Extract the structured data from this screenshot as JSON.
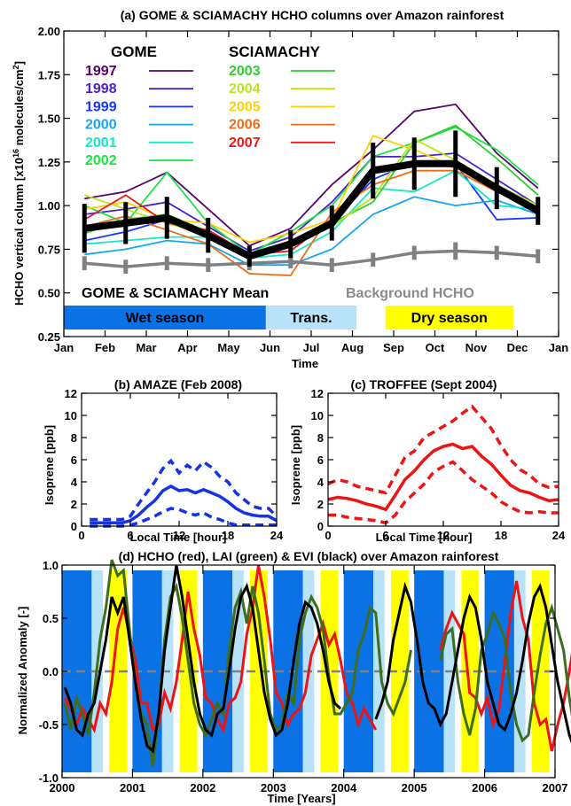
{
  "figure": {
    "title": "GOME & SCIAMACHY HCHO columns over Amazon rainforest",
    "bg": "#ffffff"
  },
  "chart_data": [
    {
      "id": "a",
      "type": "line",
      "title": "(a) GOME & SCIAMACHY HCHO columns over Amazon rainforest",
      "ylabel": "HCHO vertical column [x10",
      "ylabel_sup": "16",
      "ylabel_tail": " molecules/cm",
      "ylabel_sup2": "2",
      "ylabel_end": "]",
      "xlabel": "Time",
      "ylim": [
        0.25,
        2.0
      ],
      "yticks": [
        "0.25",
        "0.50",
        "0.75",
        "1.00",
        "1.25",
        "1.50",
        "1.75",
        "2.00"
      ],
      "xlim": [
        0,
        12
      ],
      "xticks": [
        "Jan",
        "Feb",
        "Mar",
        "Apr",
        "May",
        "Jun",
        "Jul",
        "Aug",
        "Sep",
        "Oct",
        "Nov",
        "Dec",
        "Jan"
      ],
      "x": [
        0.5,
        1.5,
        2.5,
        3.5,
        4.5,
        5.5,
        6.5,
        7.5,
        8.5,
        9.5,
        10.5,
        11.5
      ],
      "legend_headers": {
        "gome": "GOME",
        "sciamachy": "SCIAMACHY"
      },
      "series": [
        {
          "name": "1997",
          "color": "#5a0070",
          "group": "gome",
          "values": [
            1.04,
            1.08,
            1.19,
            0.98,
            0.77,
            0.87,
            1.12,
            1.32,
            1.54,
            1.58,
            1.3,
            1.1
          ]
        },
        {
          "name": "1998",
          "color": "#4b1ed1",
          "group": "gome",
          "values": [
            0.95,
            0.98,
            1.02,
            0.88,
            0.74,
            0.82,
            1.02,
            1.28,
            1.28,
            1.3,
            1.15,
            1.0
          ]
        },
        {
          "name": "1999",
          "color": "#1435ff",
          "group": "gome",
          "values": [
            0.8,
            0.85,
            0.92,
            0.82,
            0.7,
            0.78,
            0.9,
            1.15,
            1.25,
            1.24,
            0.92,
            0.93
          ]
        },
        {
          "name": "2000",
          "color": "#13a7f0",
          "group": "gome",
          "values": [
            0.72,
            0.75,
            0.8,
            0.78,
            0.66,
            0.66,
            0.75,
            0.95,
            1.05,
            1.0,
            1.03,
            0.95
          ]
        },
        {
          "name": "2001",
          "color": "#15e8c3",
          "group": "gome",
          "values": [
            0.78,
            0.8,
            0.82,
            0.82,
            0.7,
            0.72,
            0.85,
            1.1,
            1.08,
            1.2,
            1.0,
            0.98
          ]
        },
        {
          "name": "2002",
          "color": "#16e646",
          "group": "gome",
          "values": [
            1.0,
            0.9,
            1.19,
            0.9,
            0.72,
            0.85,
            1.0,
            1.28,
            1.36,
            1.45,
            1.32,
            1.12
          ]
        },
        {
          "name": "2003",
          "color": "#2fcf2f",
          "group": "sciamachy",
          "values": [
            0.84,
            0.92,
            0.95,
            0.85,
            0.7,
            0.78,
            0.9,
            1.02,
            1.36,
            1.46,
            1.27,
            1.06
          ]
        },
        {
          "name": "2004",
          "color": "#b8e61a",
          "group": "sciamachy",
          "values": [
            1.06,
            0.98,
            0.9,
            0.83,
            0.72,
            0.8,
            0.88,
            1.05,
            1.38,
            1.26,
            1.12,
            1.0
          ]
        },
        {
          "name": "2005",
          "color": "#ffd000",
          "group": "sciamachy",
          "values": [
            0.98,
            1.02,
            0.92,
            0.9,
            0.79,
            0.84,
            0.92,
            1.4,
            1.32,
            1.22,
            1.08,
            0.98
          ]
        },
        {
          "name": "2006",
          "color": "#ef6a14",
          "group": "sciamachy",
          "values": [
            0.88,
            0.94,
            0.86,
            0.78,
            0.61,
            0.6,
            0.96,
            1.12,
            1.2,
            1.2,
            1.08,
            0.98
          ]
        },
        {
          "name": "2007",
          "color": "#ee1818",
          "group": "sciamachy",
          "values": [
            0.92,
            1.06,
            0.9,
            0.86,
            0.72,
            0.74,
            0.92,
            1.22,
            1.25,
            1.22,
            1.1,
            0.95
          ]
        }
      ],
      "mean": {
        "name": "GOME & SCIAMACHY Mean",
        "color": "#000000",
        "values": [
          0.87,
          0.9,
          0.93,
          0.83,
          0.71,
          0.78,
          0.9,
          1.2,
          1.24,
          1.24,
          1.1,
          0.97
        ],
        "err": [
          0.14,
          0.12,
          0.12,
          0.1,
          0.06,
          0.08,
          0.1,
          0.16,
          0.15,
          0.19,
          0.12,
          0.08
        ]
      },
      "background": {
        "name": "Background HCHO",
        "color": "#808080",
        "values": [
          0.67,
          0.65,
          0.67,
          0.66,
          0.67,
          0.68,
          0.66,
          0.69,
          0.73,
          0.74,
          0.73,
          0.71
        ],
        "err": [
          0.04,
          0.04,
          0.04,
          0.04,
          0.04,
          0.04,
          0.04,
          0.04,
          0.04,
          0.05,
          0.04,
          0.04
        ]
      },
      "seasons": [
        {
          "label": "Wet season",
          "from": 0.0,
          "to": 4.9,
          "color": "#0b72e6",
          "text_color": "#000000"
        },
        {
          "label": "Trans.",
          "from": 4.9,
          "to": 7.1,
          "color": "#b8e2f8",
          "text_color": "#000000"
        },
        {
          "label": "Dry season",
          "from": 7.8,
          "to": 10.9,
          "color": "#ffff00",
          "text_color": "#000000"
        }
      ]
    },
    {
      "id": "b",
      "type": "line",
      "title": "(b) AMAZE (Feb 2008)",
      "xlabel": "Local Time [hour]",
      "ylabel": "Isoprene [ppb]",
      "xlim": [
        0,
        24
      ],
      "ylim": [
        0,
        12
      ],
      "xticks": [
        "0",
        "6",
        "12",
        "18",
        "24"
      ],
      "xtick_vals": [
        0,
        6,
        12,
        18,
        24
      ],
      "yticks": [
        "0",
        "2",
        "4",
        "6",
        "8",
        "10",
        "12"
      ],
      "ytick_vals": [
        0,
        2,
        4,
        6,
        8,
        10,
        12
      ],
      "color": "#1432e6",
      "x": [
        1,
        2,
        3,
        4,
        5,
        6,
        7,
        8,
        9,
        10,
        11,
        12,
        13,
        14,
        15,
        16,
        17,
        18,
        19,
        20,
        21,
        22,
        23,
        24
      ],
      "mean": [
        0.3,
        0.3,
        0.3,
        0.3,
        0.3,
        0.5,
        1.0,
        1.7,
        2.3,
        3.2,
        3.6,
        3.2,
        3.3,
        3.0,
        3.3,
        3.0,
        2.7,
        2.2,
        1.6,
        1.2,
        1.0,
        0.9,
        0.9,
        0.5
      ],
      "upper": [
        0.6,
        0.6,
        0.6,
        0.6,
        0.6,
        0.9,
        2.0,
        3.0,
        4.0,
        5.2,
        5.9,
        4.8,
        5.5,
        5.0,
        5.8,
        5.3,
        4.5,
        4.0,
        3.0,
        2.4,
        1.8,
        1.6,
        1.6,
        0.9
      ],
      "lower": [
        0.0,
        0.0,
        0.0,
        0.0,
        0.0,
        0.1,
        0.3,
        0.6,
        0.9,
        1.3,
        1.6,
        1.5,
        1.2,
        1.0,
        1.2,
        0.8,
        0.6,
        0.3,
        0.1,
        0.1,
        0.1,
        0.1,
        0.1,
        0.1
      ]
    },
    {
      "id": "c",
      "type": "line",
      "title": "(c) TROFFEE (Sept 2004)",
      "xlabel": "Local Time [hour]",
      "ylabel": "Isoprene [ppb]",
      "xlim": [
        0,
        24
      ],
      "ylim": [
        0,
        12
      ],
      "xticks": [
        "0",
        "6",
        "12",
        "18",
        "24"
      ],
      "xtick_vals": [
        0,
        6,
        12,
        18,
        24
      ],
      "yticks": [
        "0",
        "2",
        "4",
        "6",
        "8",
        "10",
        "12"
      ],
      "ytick_vals": [
        0,
        2,
        4,
        6,
        8,
        10,
        12
      ],
      "color": "#ee1414",
      "x": [
        0,
        1,
        2,
        3,
        4,
        5,
        6,
        7,
        8,
        9,
        10,
        11,
        12,
        13,
        14,
        15,
        16,
        17,
        18,
        19,
        20,
        21,
        22,
        23,
        24
      ],
      "mean": [
        2.4,
        2.6,
        2.5,
        2.3,
        2.0,
        1.8,
        1.5,
        2.8,
        4.2,
        5.0,
        6.0,
        6.8,
        7.2,
        7.4,
        7.0,
        7.2,
        6.3,
        5.6,
        4.6,
        3.7,
        3.2,
        3.0,
        2.6,
        2.3,
        2.4
      ],
      "upper": [
        3.8,
        4.2,
        4.0,
        3.6,
        3.4,
        3.2,
        3.0,
        4.6,
        6.2,
        6.8,
        8.0,
        8.5,
        9.0,
        9.5,
        10.2,
        10.8,
        9.8,
        8.8,
        7.3,
        6.0,
        5.1,
        4.6,
        3.8,
        3.5,
        3.6
      ],
      "lower": [
        1.0,
        1.0,
        0.8,
        0.7,
        0.6,
        0.5,
        0.3,
        1.0,
        2.2,
        3.0,
        3.8,
        4.9,
        5.4,
        5.8,
        5.0,
        4.2,
        3.6,
        3.0,
        2.2,
        1.7,
        1.3,
        1.2,
        1.3,
        1.2,
        1.2
      ]
    },
    {
      "id": "d",
      "type": "line",
      "title": "(d) HCHO (red), LAI (green) & EVI (black) over Amazon rainforest",
      "xlabel": "Time [Years]",
      "ylabel": "Normalized Anomaly [-]",
      "xlim": [
        2000,
        2007
      ],
      "ylim": [
        -1.0,
        1.0
      ],
      "xticks": [
        "2000",
        "2001",
        "2002",
        "2003",
        "2004",
        "2005",
        "2006",
        "2007"
      ],
      "yticks": [
        "-1.0",
        "-0.5",
        "0.0",
        "0.5",
        "1.0"
      ],
      "ytick_vals": [
        -1.0,
        -0.5,
        0.0,
        0.5,
        1.0
      ],
      "zero_line_color": "#808080",
      "season_colors": {
        "wet": "#0b72e6",
        "trans": "#b8e2f8",
        "dry": "#ffff00"
      },
      "season_pattern": [
        {
          "kind": "wet",
          "from": 0.0,
          "to": 0.42
        },
        {
          "kind": "trans",
          "from": 0.42,
          "to": 0.58
        },
        {
          "kind": "dry",
          "from": 0.67,
          "to": 0.92
        }
      ],
      "series": [
        {
          "name": "HCHO",
          "color": "#ee1414",
          "t0": 2000.04,
          "dt": 0.0833,
          "values": [
            -0.25,
            -0.35,
            -0.5,
            -0.35,
            -0.45,
            -0.55,
            -0.3,
            -0.4,
            -0.1,
            0.4,
            0.6,
            0.35,
            0.1,
            -0.3,
            -0.3,
            -0.55,
            -0.5,
            -0.2,
            -0.35,
            -0.1,
            0.3,
            0.75,
            0.4,
            0.15,
            -0.25,
            -0.3,
            -0.45,
            -0.55,
            -0.3,
            -0.25,
            -0.1,
            0.35,
            0.6,
            1.0,
            0.7,
            0.3,
            -0.2,
            -0.3,
            -0.5,
            -0.4,
            -0.35,
            -0.2,
            0.15,
            0.3,
            0.45,
            0.25,
            0.35,
            0.1,
            -0.2,
            -0.3,
            -0.5,
            -0.35,
            -0.45,
            -0.55,
            null,
            null,
            null,
            null,
            null,
            null,
            null,
            null,
            null,
            null,
            0.2,
            0.4,
            0.55,
            0.45,
            0.35,
            -0.2,
            -0.25,
            -0.4,
            -0.25,
            -0.5,
            -0.35,
            0.1,
            0.55,
            0.85,
            0.5,
            0.3,
            -0.3,
            -0.5,
            -0.45,
            -0.75,
            -0.5,
            -0.3,
            0.0,
            0.35,
            0.45,
            0.25,
            0.55,
            0.4,
            -0.25,
            -0.3
          ]
        },
        {
          "name": "LAI",
          "color": "#3c6e1e",
          "t0": 2000.04,
          "dt": 0.0833,
          "values": [
            -0.3,
            -0.55,
            -0.25,
            -0.4,
            -0.6,
            -0.2,
            0.3,
            0.6,
            1.05,
            0.9,
            0.95,
            0.4,
            -0.1,
            -0.4,
            -0.5,
            -0.9,
            -0.4,
            0.3,
            0.7,
            0.8,
            0.5,
            0.1,
            -0.3,
            -0.5,
            -0.6,
            -0.45,
            -0.3,
            -0.4,
            0.2,
            0.6,
            0.75,
            0.45,
            0.8,
            0.55,
            0.1,
            -0.4,
            -0.55,
            -0.5,
            -0.2,
            -0.3,
            0.3,
            0.55,
            0.7,
            0.6,
            0.4,
            -0.05,
            -0.4,
            -0.4,
            -0.3,
            -0.2,
            0.2,
            0.35,
            0.6,
            0.55,
            -0.1,
            -0.3,
            -0.4,
            -0.25,
            -0.1,
            0.2,
            null,
            null,
            null,
            null,
            0.1,
            0.35,
            0.4,
            -0.1,
            -0.4,
            -0.6,
            -0.35,
            0.2,
            0.35,
            0.55,
            0.45,
            0.3,
            -0.2,
            -0.5,
            -0.65,
            -0.6,
            -0.2,
            0.15,
            0.45,
            0.6,
            0.4,
            0.2,
            -0.25,
            -0.6,
            -0.35,
            -0.2,
            0.25,
            0.55,
            0.65,
            0.45,
            0.1
          ]
        },
        {
          "name": "EVI",
          "color": "#000000",
          "t0": 2000.04,
          "dt": 0.0833,
          "values": [
            -0.15,
            -0.3,
            -0.55,
            -0.6,
            -0.4,
            -0.3,
            0.0,
            0.3,
            0.7,
            0.55,
            0.7,
            0.3,
            -0.1,
            -0.45,
            -0.7,
            -0.75,
            -0.4,
            0.2,
            0.6,
            1.0,
            0.7,
            0.3,
            -0.1,
            -0.4,
            -0.55,
            -0.6,
            -0.4,
            -0.35,
            0.0,
            0.4,
            0.7,
            0.8,
            0.6,
            0.2,
            -0.2,
            -0.45,
            -0.6,
            -0.55,
            -0.3,
            0.1,
            0.45,
            0.65,
            0.6,
            0.45,
            0.2,
            -0.1,
            -0.3,
            -0.35,
            null,
            null,
            null,
            null,
            null,
            -0.45,
            -0.3,
            -0.1,
            0.3,
            0.55,
            0.8,
            0.65,
            0.3,
            -0.1,
            -0.3,
            -0.35,
            -0.5,
            -0.4,
            -0.1,
            0.2,
            0.5,
            0.7,
            0.6,
            0.3,
            -0.1,
            -0.3,
            -0.5,
            -0.55,
            -0.4,
            -0.2,
            0.1,
            0.45,
            0.7,
            0.8,
            0.6,
            0.25,
            -0.1,
            -0.35,
            -0.6,
            -0.75,
            -0.5,
            -0.2,
            0.3,
            0.7,
            0.85,
            0.8,
            0.3
          ]
        }
      ]
    }
  ]
}
